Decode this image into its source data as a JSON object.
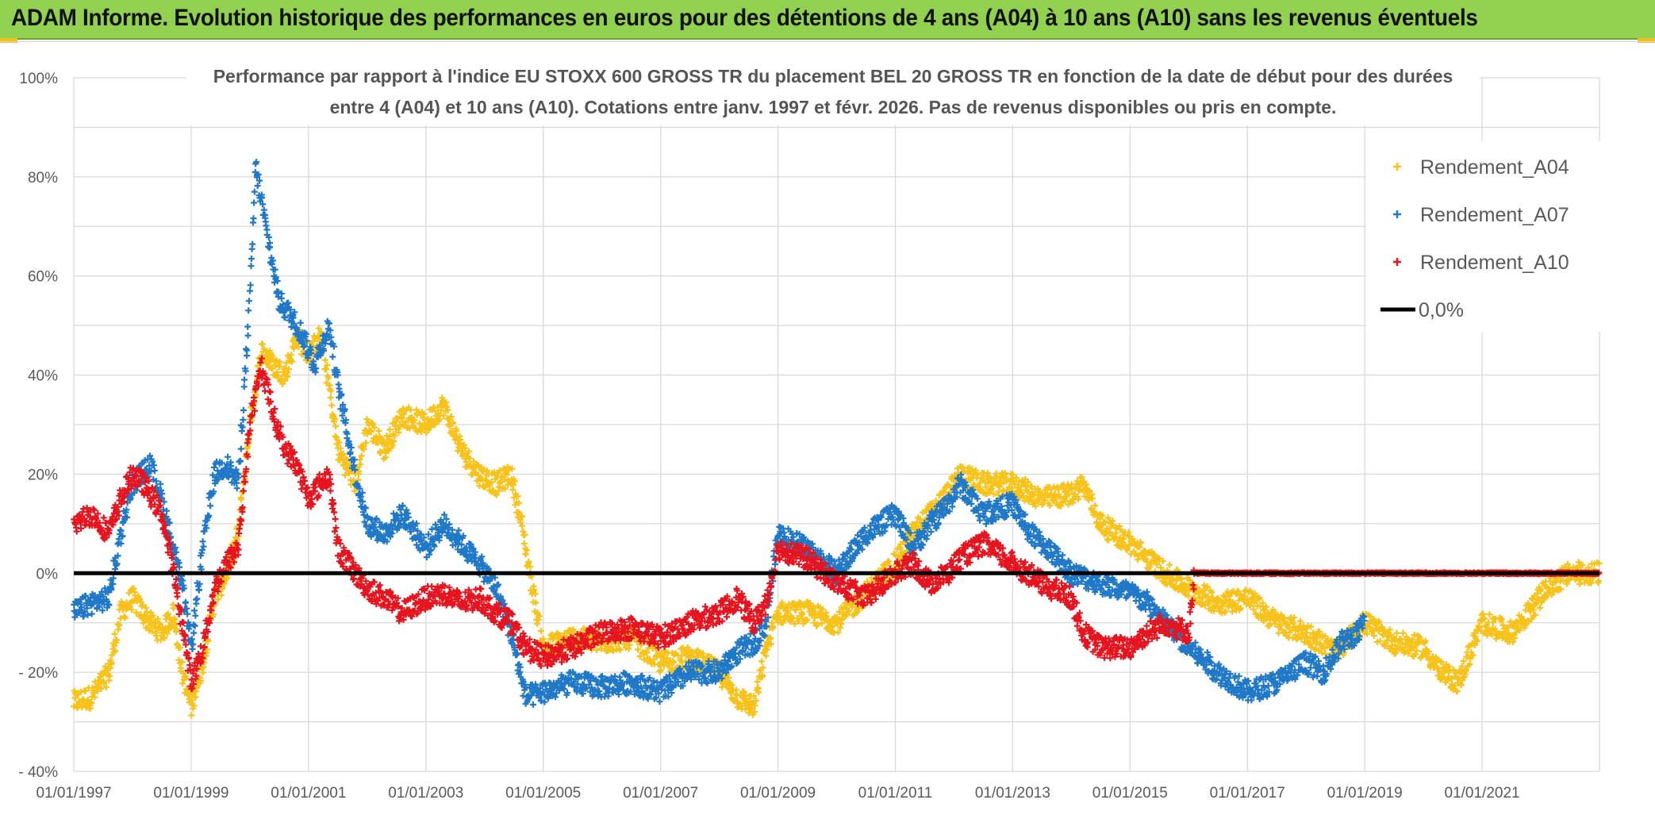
{
  "header": {
    "title": "ADAM Informe. Evolution historique des performances en euros pour des détentions de 4 ans (A04) à 10 ans (A10) sans les revenus éventuels"
  },
  "colors": {
    "header_bg": "#92d050",
    "a04": "#f7c31b",
    "a07": "#1f78c8",
    "a10": "#e6141e",
    "zero": "#000000",
    "grid": "#d9d9d9"
  },
  "chart_data": {
    "type": "scatter",
    "title_line1": "Performance par rapport à l'indice EU STOXX 600 GROSS TR  du placement BEL 20 GROSS TR en fonction de la date de début pour des durées",
    "title_line2": "entre 4 (A04) et 10 ans (A10). Cotations entre janv. 1997 et févr. 2026. Pas de revenus disponibles ou pris en compte.",
    "x_range": [
      1997.0,
      2023.0
    ],
    "y_range": [
      -40,
      100
    ],
    "y_ticks": [
      100,
      80,
      60,
      40,
      20,
      0,
      -20,
      -40
    ],
    "y_tick_labels": [
      "100%",
      "80%",
      "60%",
      "40%",
      "20%",
      "0%",
      "- 20%",
      "- 40%"
    ],
    "x_ticks": [
      1997,
      1999,
      2001,
      2003,
      2005,
      2007,
      2009,
      2011,
      2013,
      2015,
      2017,
      2019,
      2021
    ],
    "x_tick_labels": [
      "01/01/1997",
      "01/01/1999",
      "01/01/2001",
      "01/01/2003",
      "01/01/2005",
      "01/01/2007",
      "01/01/2009",
      "01/01/2011",
      "01/01/2013",
      "01/01/2015",
      "01/01/2017",
      "01/01/2019",
      "01/01/2021"
    ],
    "legend_position": "top-right",
    "series": [
      {
        "name": "Rendement_A04",
        "key": "a04",
        "x": [
          1997.0,
          1997.3,
          1997.6,
          1997.8,
          1998.0,
          1998.3,
          1998.5,
          1998.7,
          1998.85,
          1999.0,
          1999.2,
          1999.4,
          1999.6,
          1999.8,
          2000.0,
          2000.2,
          2000.4,
          2000.6,
          2000.8,
          2001.0,
          2001.2,
          2001.35,
          2001.5,
          2001.8,
          2002.0,
          2002.3,
          2002.6,
          2003.0,
          2003.3,
          2003.6,
          2003.9,
          2004.2,
          2004.45,
          2004.6,
          2004.8,
          2005.0,
          2005.5,
          2006.0,
          2006.5,
          2007.0,
          2007.5,
          2008.0,
          2008.3,
          2008.6,
          2008.8,
          2009.0,
          2009.5,
          2010.0,
          2010.5,
          2011.0,
          2011.3,
          2011.6,
          2011.9,
          2012.1,
          2012.5,
          2013.0,
          2013.5,
          2014.0,
          2014.2,
          2014.5,
          2015.0,
          2015.3,
          2015.6,
          2016.0,
          2016.5,
          2017.0,
          2017.5,
          2018.0,
          2018.5,
          2019.0,
          2019.5,
          2020.0,
          2020.3,
          2020.6,
          2021.0,
          2021.5,
          2021.8,
          2022.1,
          2022.5,
          2023.0
        ],
        "y": [
          -26,
          -25,
          -20,
          -8,
          -5,
          -10,
          -12,
          -8,
          -20,
          -27,
          -18,
          -5,
          0,
          8,
          30,
          45,
          42,
          40,
          48,
          44,
          48,
          38,
          25,
          18,
          30,
          25,
          32,
          30,
          34,
          25,
          20,
          18,
          20,
          12,
          -2,
          -15,
          -13,
          -14,
          -13,
          -18,
          -17,
          -20,
          -25,
          -27,
          -15,
          -8,
          -8,
          -10,
          -4,
          2,
          8,
          12,
          16,
          20,
          18,
          18,
          15,
          16,
          18,
          10,
          6,
          3,
          0,
          -3,
          -6,
          -5,
          -10,
          -12,
          -16,
          -10,
          -14,
          -15,
          -20,
          -22,
          -10,
          -12,
          -8,
          -3,
          0,
          0
        ]
      },
      {
        "name": "Rendement_A07",
        "key": "a07",
        "x": [
          1997.0,
          1997.3,
          1997.6,
          1997.8,
          1998.0,
          1998.3,
          1998.5,
          1998.7,
          1998.85,
          1999.0,
          1999.2,
          1999.4,
          1999.6,
          1999.8,
          2000.0,
          2000.1,
          2000.3,
          2000.5,
          2000.7,
          2000.9,
          2001.1,
          2001.35,
          2001.5,
          2001.8,
          2002.0,
          2002.3,
          2002.6,
          2003.0,
          2003.3,
          2003.6,
          2003.9,
          2004.2,
          2004.45,
          2004.7,
          2005.0,
          2005.5,
          2006.0,
          2006.5,
          2007.0,
          2007.5,
          2008.0,
          2008.3,
          2008.6,
          2008.8,
          2009.0,
          2009.5,
          2010.0,
          2010.5,
          2011.0,
          2011.3,
          2011.6,
          2011.9,
          2012.1,
          2012.5,
          2013.0,
          2013.3,
          2013.6,
          2014.0,
          2014.5,
          2015.0,
          2015.3,
          2015.6,
          2016.0,
          2016.5,
          2017.0,
          2017.5,
          2018.0,
          2018.3,
          2018.6,
          2018.9,
          2019.0
        ],
        "y": [
          -8,
          -6,
          -5,
          8,
          18,
          22,
          15,
          5,
          -3,
          -15,
          5,
          20,
          22,
          18,
          55,
          82,
          68,
          55,
          52,
          48,
          42,
          50,
          38,
          20,
          10,
          8,
          12,
          5,
          10,
          6,
          2,
          -3,
          -12,
          -25,
          -24,
          -22,
          -23,
          -22,
          -24,
          -20,
          -20,
          -16,
          -14,
          -10,
          8,
          5,
          0,
          8,
          12,
          5,
          10,
          14,
          18,
          12,
          14,
          8,
          5,
          0,
          -2,
          -4,
          -6,
          -10,
          -15,
          -20,
          -24,
          -22,
          -18,
          -20,
          -14,
          -12,
          -10
        ]
      },
      {
        "name": "Rendement_A10",
        "key": "a10",
        "x": [
          1997.0,
          1997.3,
          1997.6,
          1997.8,
          1998.0,
          1998.2,
          1998.5,
          1998.7,
          1998.85,
          1999.0,
          1999.2,
          1999.4,
          1999.6,
          1999.8,
          2000.0,
          2000.2,
          2000.4,
          2000.6,
          2000.8,
          2001.0,
          2001.2,
          2001.35,
          2001.5,
          2001.8,
          2002.0,
          2002.3,
          2002.6,
          2003.0,
          2003.3,
          2003.6,
          2003.9,
          2004.2,
          2004.45,
          2004.7,
          2005.0,
          2005.5,
          2006.0,
          2006.5,
          2007.0,
          2007.5,
          2008.0,
          2008.3,
          2008.6,
          2008.8,
          2009.0,
          2009.5,
          2010.0,
          2010.5,
          2011.0,
          2011.3,
          2011.6,
          2011.9,
          2012.1,
          2012.5,
          2013.0,
          2013.5,
          2014.0,
          2014.2,
          2014.5,
          2015.0,
          2015.3,
          2015.6,
          2016.0,
          2016.1,
          2017.0,
          2018.0,
          2019.0,
          2020.0,
          2021.0,
          2022.0,
          2023.0
        ],
        "y": [
          10,
          12,
          8,
          15,
          20,
          18,
          12,
          0,
          -10,
          -22,
          -15,
          -3,
          2,
          5,
          30,
          42,
          32,
          25,
          22,
          15,
          18,
          20,
          5,
          0,
          -3,
          -5,
          -8,
          -5,
          -4,
          -6,
          -5,
          -8,
          -10,
          -15,
          -17,
          -15,
          -12,
          -11,
          -13,
          -10,
          -8,
          -5,
          -10,
          -6,
          5,
          3,
          -2,
          -5,
          0,
          2,
          -2,
          0,
          3,
          6,
          2,
          -2,
          -5,
          -12,
          -15,
          -15,
          -12,
          -10,
          -12,
          0,
          0,
          0,
          0,
          0,
          0,
          0,
          0
        ]
      },
      {
        "name": "0,0%",
        "key": "zero",
        "x": [
          1997.0,
          2023.0
        ],
        "y": [
          0,
          0
        ]
      }
    ]
  }
}
